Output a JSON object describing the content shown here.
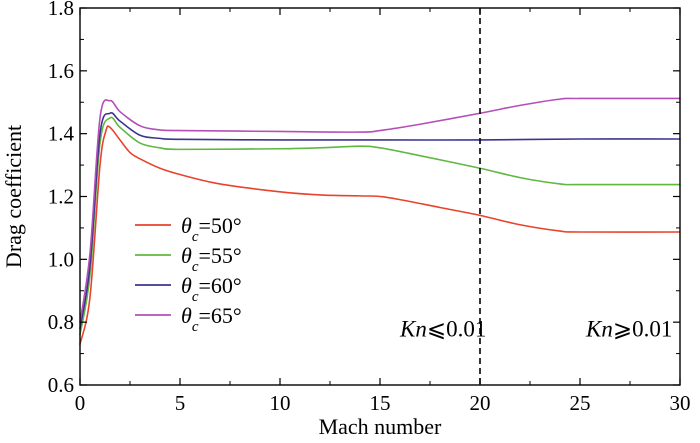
{
  "chart_data": {
    "type": "line",
    "xlabel": "Mach number",
    "ylabel": "Drag coefficient",
    "xlim": [
      0,
      30
    ],
    "ylim": [
      0.6,
      1.8
    ],
    "x_ticks": [
      "0",
      "5",
      "10",
      "15",
      "20",
      "25",
      "30"
    ],
    "y_ticks": [
      "0.6",
      "0.8",
      "1.0",
      "1.2",
      "1.4",
      "1.6",
      "1.8"
    ],
    "grid": false,
    "legend_position": "left-middle",
    "vline": {
      "x": 20,
      "style": "dashed",
      "color": "#000000"
    },
    "annotations": [
      {
        "id": "kn-left",
        "prefix": "Kn",
        "suffix": "⩽0.01",
        "x": 16,
        "y": 0.78
      },
      {
        "id": "kn-right",
        "prefix": "Kn",
        "suffix": "⩾0.01",
        "x": 25.3,
        "y": 0.78
      }
    ],
    "series": [
      {
        "name": "θc=50°",
        "legend_symbol": "θ",
        "legend_sub": "c",
        "legend_value": "=50°",
        "color": "#e8432c",
        "points": [
          [
            0,
            0.73
          ],
          [
            0.5,
            0.88
          ],
          [
            1,
            1.3
          ],
          [
            1.3,
            1.41
          ],
          [
            1.5,
            1.42
          ],
          [
            2,
            1.38
          ],
          [
            2.5,
            1.34
          ],
          [
            3,
            1.32
          ],
          [
            4,
            1.29
          ],
          [
            5,
            1.27
          ],
          [
            7,
            1.24
          ],
          [
            10,
            1.215
          ],
          [
            12,
            1.205
          ],
          [
            14,
            1.202
          ],
          [
            15,
            1.2
          ],
          [
            16,
            1.19
          ],
          [
            18,
            1.165
          ],
          [
            20,
            1.14
          ],
          [
            22,
            1.11
          ],
          [
            24,
            1.09
          ],
          [
            25,
            1.087
          ],
          [
            30,
            1.087
          ]
        ]
      },
      {
        "name": "θc=55°",
        "legend_symbol": "θ",
        "legend_sub": "c",
        "legend_value": "=55°",
        "color": "#5fb840",
        "points": [
          [
            0,
            0.76
          ],
          [
            0.5,
            0.95
          ],
          [
            1,
            1.37
          ],
          [
            1.5,
            1.45
          ],
          [
            2,
            1.42
          ],
          [
            3,
            1.37
          ],
          [
            4,
            1.355
          ],
          [
            5,
            1.35
          ],
          [
            10,
            1.352
          ],
          [
            12,
            1.355
          ],
          [
            14,
            1.36
          ],
          [
            15,
            1.355
          ],
          [
            17,
            1.33
          ],
          [
            20,
            1.29
          ],
          [
            22,
            1.26
          ],
          [
            24,
            1.24
          ],
          [
            25,
            1.238
          ],
          [
            30,
            1.238
          ]
        ]
      },
      {
        "name": "θc=60°",
        "legend_symbol": "θ",
        "legend_sub": "c",
        "legend_value": "=60°",
        "color": "#3b358f",
        "points": [
          [
            0,
            0.78
          ],
          [
            0.5,
            0.98
          ],
          [
            1,
            1.4
          ],
          [
            1.5,
            1.465
          ],
          [
            2,
            1.44
          ],
          [
            3,
            1.395
          ],
          [
            4,
            1.385
          ],
          [
            5,
            1.382
          ],
          [
            10,
            1.38
          ],
          [
            15,
            1.38
          ],
          [
            20,
            1.38
          ],
          [
            25,
            1.383
          ],
          [
            30,
            1.383
          ]
        ]
      },
      {
        "name": "θc=65°",
        "legend_symbol": "θ",
        "legend_sub": "c",
        "legend_value": "=65°",
        "color": "#b44fb8",
        "points": [
          [
            0,
            0.8
          ],
          [
            0.5,
            1.02
          ],
          [
            1,
            1.45
          ],
          [
            1.5,
            1.505
          ],
          [
            2,
            1.47
          ],
          [
            3,
            1.425
          ],
          [
            4,
            1.412
          ],
          [
            5,
            1.41
          ],
          [
            10,
            1.407
          ],
          [
            14,
            1.405
          ],
          [
            15,
            1.41
          ],
          [
            17,
            1.43
          ],
          [
            20,
            1.465
          ],
          [
            22,
            1.49
          ],
          [
            24,
            1.51
          ],
          [
            25,
            1.512
          ],
          [
            30,
            1.512
          ]
        ]
      }
    ]
  }
}
